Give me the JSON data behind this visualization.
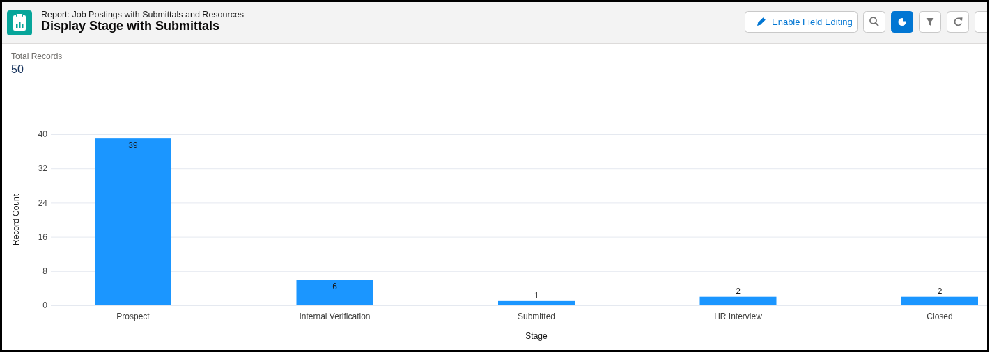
{
  "chart_data": {
    "type": "bar",
    "title": "Display Stage with Submittals",
    "subtitle": "Report: Job Postings with Submittals and Resources",
    "annotations": [
      "Total Records",
      "50",
      "Enable Field Editing"
    ],
    "xlabel": "Stage",
    "ylabel": "Record Count",
    "categories": [
      "Prospect",
      "Internal Verification",
      "Submitted",
      "HR Interview",
      "Closed"
    ],
    "values": [
      39,
      6,
      1,
      2,
      2
    ],
    "color": "#1b96ff",
    "ylim": [
      0,
      40
    ],
    "yticks": [
      0,
      8,
      16,
      24,
      32,
      40
    ],
    "grid": "y",
    "data_labels": true
  }
}
